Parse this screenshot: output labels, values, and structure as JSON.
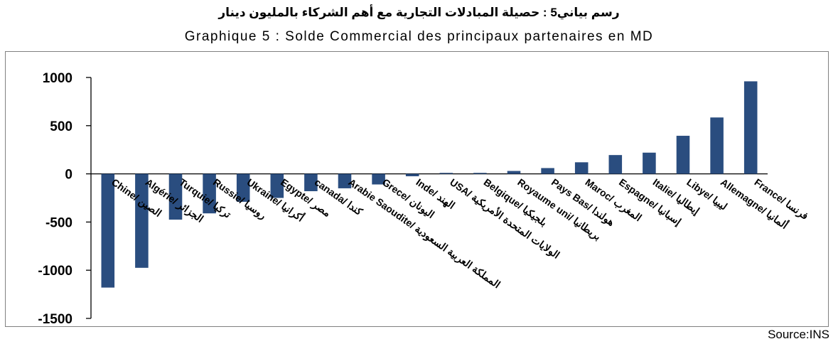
{
  "title_ar": "رسم بياني5 : حصيلة المبادلات التجارية مع أهم الشركاء بالمليون دينار",
  "title_fr": "Graphique 5 : Solde Commercial des principaux partenaires en MD",
  "source": "Source:INS",
  "bar_color": "#2a4d7f",
  "chart_data": {
    "type": "bar",
    "title": "Graphique 5 : Solde Commercial des principaux partenaires en MD",
    "xlabel": "",
    "ylabel": "",
    "ylim": [
      -1500,
      1000
    ],
    "yticks": [
      1000,
      500,
      0,
      -500,
      -1000,
      -1500
    ],
    "grid": false,
    "legend": "none",
    "categories": [
      "Chine/ الصين",
      "Algérie/ الجزائر",
      "Turquie/ تركيا",
      "Russie/ روسيا",
      "Ukraine/ أكرانيا",
      "Egypte/ مصر",
      "canada/ كندا",
      "Arabie Saoudite/ المملكة العربية السعودية",
      "Grece/ اليونان",
      "Inde/ الهند",
      "USA/ الولايات المتحدة الأمريكية",
      "Belgique/ بلجيكيا",
      "Royaume uni/ بريطانيا",
      "Pays Bas/ هولندا",
      "Maroc/ المغرب",
      "Espagne/ إسبانيا",
      "Italie/ إيطاليا",
      "Libye/ ليبيا",
      "Allemagne/ ألمانيا",
      "France/ فرنسا"
    ],
    "values": [
      -1180,
      -975,
      -475,
      -410,
      -290,
      -250,
      -180,
      -150,
      -110,
      -25,
      10,
      10,
      30,
      60,
      120,
      195,
      220,
      395,
      585,
      960
    ]
  }
}
